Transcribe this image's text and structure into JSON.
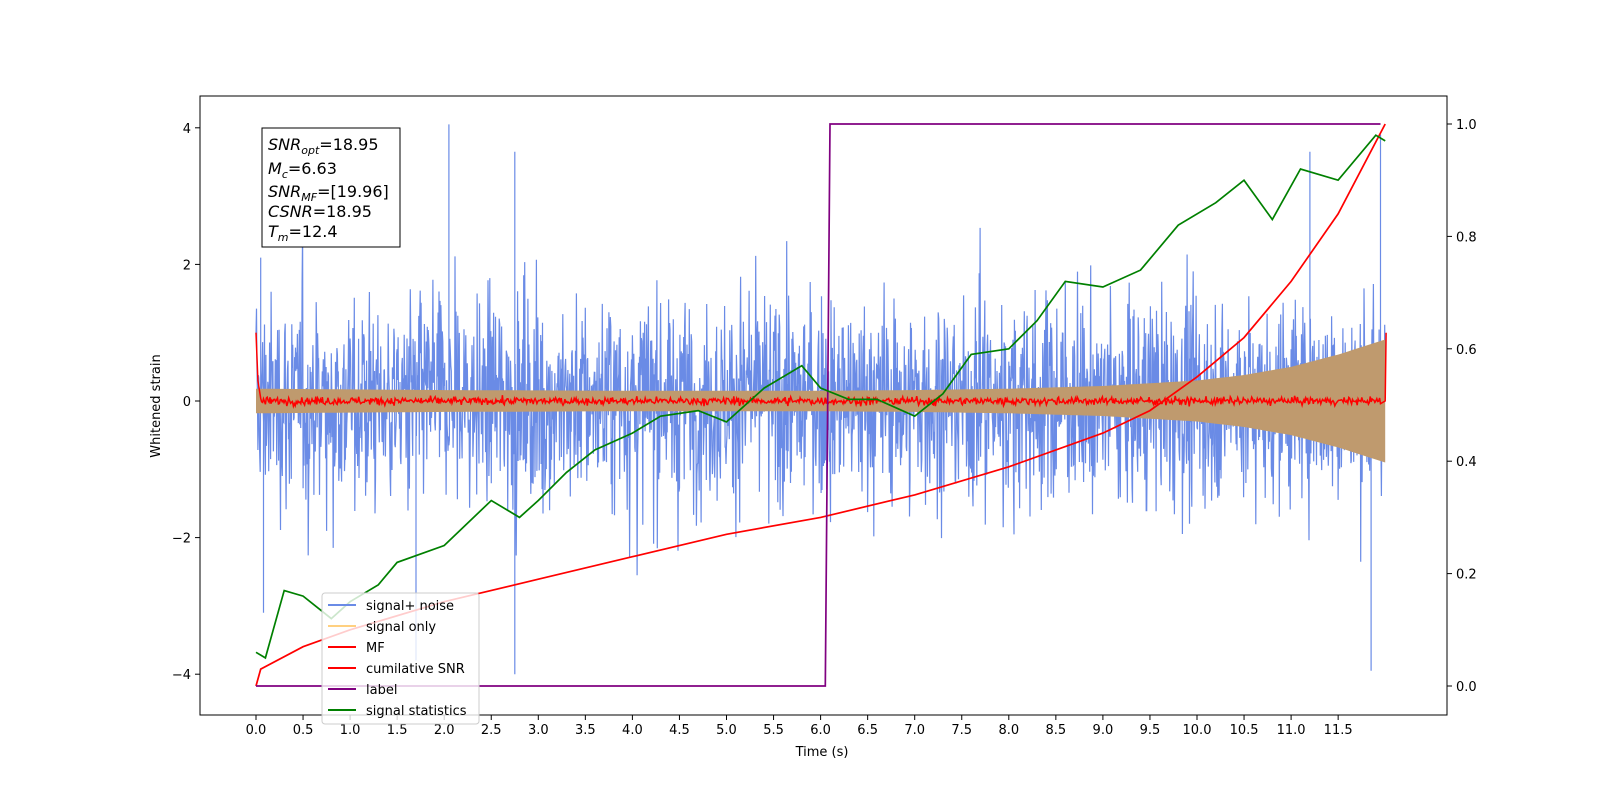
{
  "chart_data": {
    "type": "line",
    "xlabel": "Time (s)",
    "ylabel": "Whitened strain",
    "xlim": [
      -0.6,
      12.6
    ],
    "ylim": [
      -4.6,
      4.5
    ],
    "y2lim": [
      -0.05,
      1.03
    ],
    "x_ticks": [
      "0.0",
      "0.5",
      "1.0",
      "1.5",
      "2.0",
      "2.5",
      "3.0",
      "3.5",
      "4.0",
      "4.5",
      "5.0",
      "5.5",
      "6.0",
      "6.5",
      "7.0",
      "7.5",
      "8.0",
      "8.5",
      "9.0",
      "9.5",
      "10.0",
      "10.5",
      "11.0",
      "11.5"
    ],
    "y_ticks": [
      -4,
      -2,
      0,
      2,
      4
    ],
    "y2_ticks": [
      "0.0",
      "0.2",
      "0.4",
      "0.6",
      "0.8",
      "1.0"
    ],
    "legend_position": "lower-left",
    "colors": {
      "signal_noise": "#6a8be6",
      "signal_only": "#d9a050",
      "signal_fill": "#bf9a6e",
      "mf": "#ff0000",
      "cumulative_snr": "#ff0000",
      "label": "#800080",
      "statistics": "#008000"
    },
    "annotation": {
      "snr_opt": "=18.95",
      "mc": "=6.63",
      "snr_mf": "=[19.96]",
      "csnr": "=18.95",
      "tm": "=12.4"
    },
    "series": [
      {
        "name": "signal+ noise",
        "axis": "left",
        "description_range": "noise band approx -2.4 to 2.4 with spikes to 4.05 and -4.0",
        "envelope_x": [
          0,
          12
        ],
        "spikes": [
          [
            0.05,
            2.1
          ],
          [
            0.08,
            -3.1
          ],
          [
            2.05,
            4.05
          ],
          [
            2.75,
            -4.0
          ],
          [
            2.75,
            3.65
          ],
          [
            1.7,
            -3.8
          ],
          [
            11.85,
            -3.95
          ],
          [
            11.95,
            3.9
          ],
          [
            11.2,
            3.65
          ]
        ]
      },
      {
        "name": "signal only",
        "axis": "left",
        "amplitude_envelope": {
          "x": [
            0,
            2,
            4,
            6,
            7,
            8,
            9,
            10,
            10.5,
            11,
            11.5,
            12
          ],
          "amp": [
            0.18,
            0.16,
            0.15,
            0.15,
            0.16,
            0.18,
            0.22,
            0.3,
            0.38,
            0.5,
            0.68,
            0.9
          ]
        }
      },
      {
        "name": "MF",
        "axis": "left",
        "x": [
          0.0,
          0.02,
          0.05,
          0.1,
          12.0,
          12.01
        ],
        "y": [
          1.0,
          0.3,
          0.08,
          0.0,
          0.0,
          1.0
        ]
      },
      {
        "name": "cumilative SNR",
        "axis": "right",
        "x": [
          0.0,
          0.05,
          0.5,
          1.0,
          2.0,
          3.0,
          4.0,
          5.0,
          6.0,
          7.0,
          8.0,
          9.0,
          9.5,
          10.0,
          10.5,
          11.0,
          11.5,
          12.0
        ],
        "y": [
          0.0,
          0.03,
          0.07,
          0.1,
          0.15,
          0.19,
          0.23,
          0.27,
          0.3,
          0.34,
          0.39,
          0.45,
          0.49,
          0.55,
          0.62,
          0.72,
          0.84,
          1.0
        ]
      },
      {
        "name": "label",
        "axis": "right",
        "x": [
          0.0,
          6.05,
          6.1,
          11.95
        ],
        "y": [
          0.0,
          0.0,
          1.0,
          1.0
        ]
      },
      {
        "name": "signal statistics",
        "axis": "right",
        "x": [
          0.0,
          0.1,
          0.3,
          0.5,
          0.8,
          1.0,
          1.3,
          1.5,
          2.0,
          2.5,
          2.8,
          3.0,
          3.3,
          3.6,
          4.0,
          4.3,
          4.7,
          5.0,
          5.4,
          5.8,
          6.0,
          6.3,
          6.6,
          7.0,
          7.3,
          7.6,
          8.0,
          8.3,
          8.6,
          9.0,
          9.4,
          9.8,
          10.2,
          10.5,
          10.8,
          11.1,
          11.5,
          11.9,
          12.0
        ],
        "y": [
          0.06,
          0.05,
          0.17,
          0.16,
          0.12,
          0.15,
          0.18,
          0.22,
          0.25,
          0.33,
          0.3,
          0.33,
          0.38,
          0.42,
          0.45,
          0.48,
          0.49,
          0.47,
          0.53,
          0.57,
          0.53,
          0.51,
          0.51,
          0.48,
          0.52,
          0.59,
          0.6,
          0.65,
          0.72,
          0.71,
          0.74,
          0.82,
          0.86,
          0.9,
          0.83,
          0.92,
          0.9,
          0.98,
          0.97
        ]
      }
    ]
  }
}
